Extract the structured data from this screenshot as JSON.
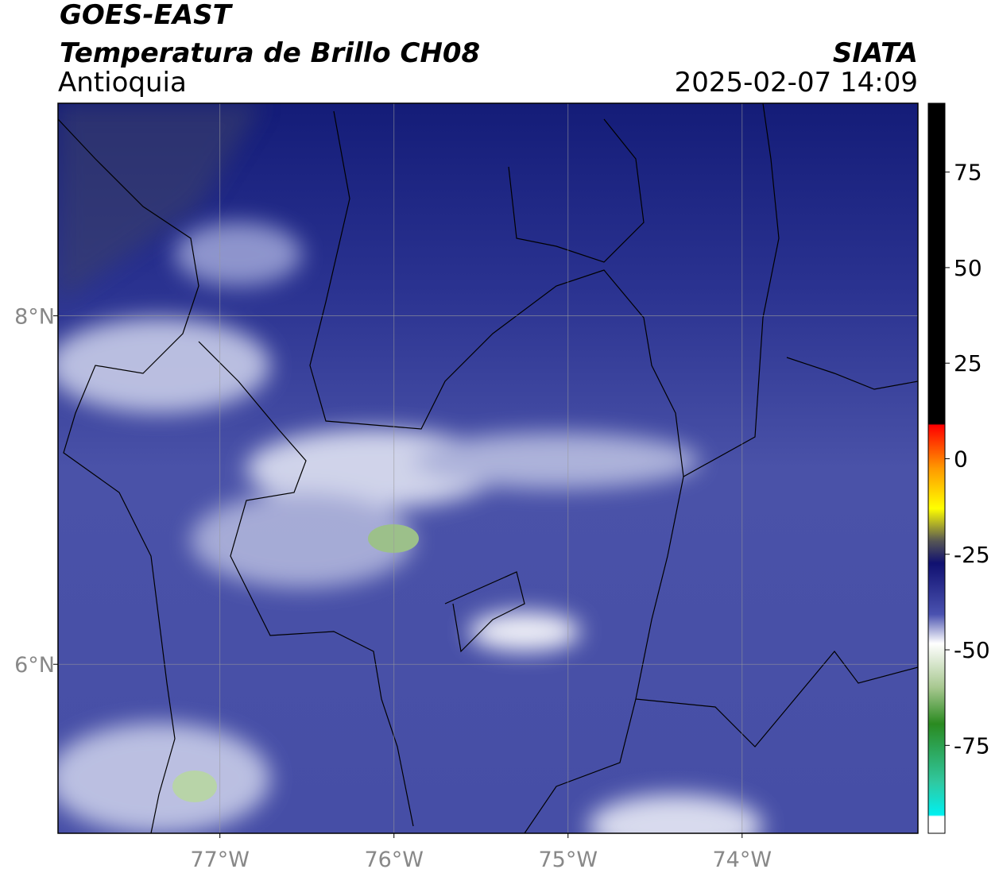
{
  "header": {
    "title": "GOES-EAST",
    "subtitle": "Temperatura de Brillo CH08",
    "source": "SIATA",
    "region": "Antioquia",
    "datetime": "2025-02-07 14:09"
  },
  "map": {
    "xlim": [
      -77.93,
      -72.99
    ],
    "ylim": [
      5.03,
      9.22
    ],
    "xticks": [
      {
        "value": -77,
        "label": "77°W"
      },
      {
        "value": -76,
        "label": "76°W"
      },
      {
        "value": -75,
        "label": "75°W"
      },
      {
        "value": -74,
        "label": "74°W"
      }
    ],
    "yticks": [
      {
        "value": 8,
        "label": "8°N"
      },
      {
        "value": 6,
        "label": "6°N"
      }
    ]
  },
  "colorbar": {
    "vlim": [
      -98,
      93
    ],
    "ticks": [
      75,
      50,
      25,
      0,
      -25,
      -50,
      -75
    ]
  }
}
